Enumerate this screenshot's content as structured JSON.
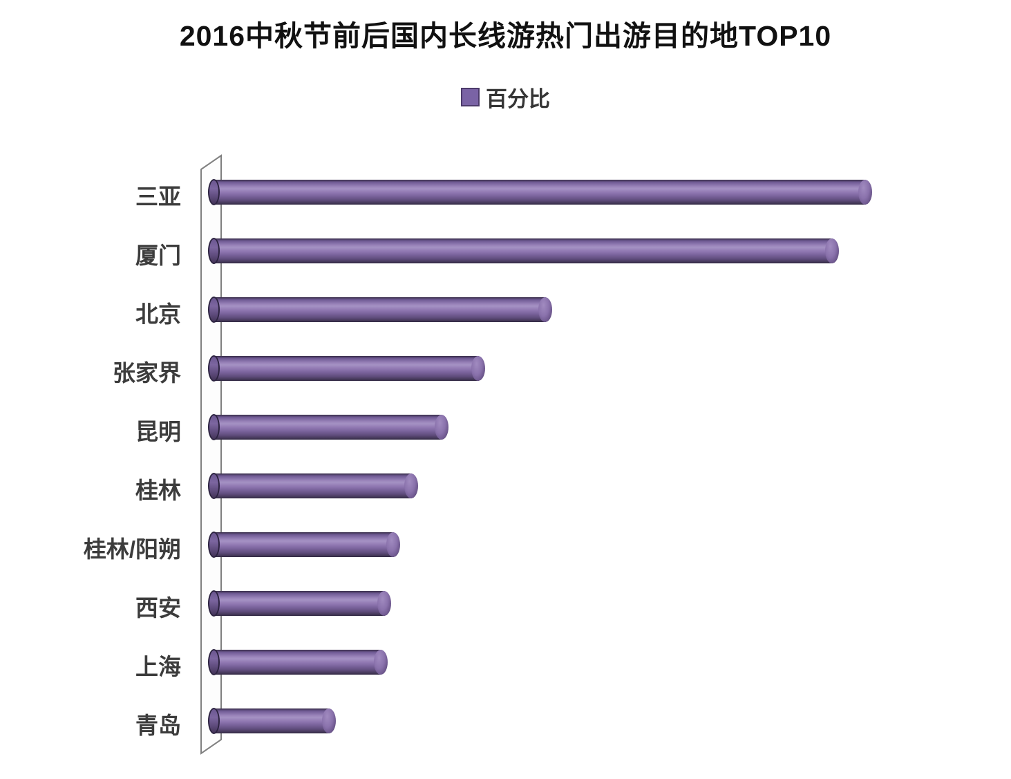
{
  "chart_data": {
    "type": "bar",
    "orientation": "horizontal",
    "style": "3d-cylinder",
    "title": "2016中秋节前后国内长线游热门出游目的地TOP10",
    "legend": {
      "label": "百分比",
      "marker_color": "#7a63a5",
      "position": "top-center"
    },
    "categories": [
      "三亚",
      "厦门",
      "北京",
      "张家界",
      "昆明",
      "桂林",
      "桂林/阳朔",
      "西安",
      "上海",
      "青岛"
    ],
    "values": [
      21.8,
      20.7,
      11.3,
      9.1,
      7.9,
      6.9,
      6.3,
      6.0,
      5.9,
      4.2
    ],
    "series": [
      {
        "name": "百分比",
        "values": [
          21.8,
          20.7,
          11.3,
          9.1,
          7.9,
          6.9,
          6.3,
          6.0,
          5.9,
          4.2
        ]
      }
    ],
    "values_are_estimates_from_bar_lengths": true,
    "value_labels_visible": false,
    "x_axis_visible": false,
    "grid": false,
    "xlim": [
      0,
      24
    ],
    "bar_color": "#8a72ac",
    "bar_highlight_color": "#a592c4",
    "bar_shadow_color": "#372b47",
    "wall_stroke_color": "#808080",
    "title_color": "#111111",
    "category_label_color": "#3c3c3c"
  }
}
